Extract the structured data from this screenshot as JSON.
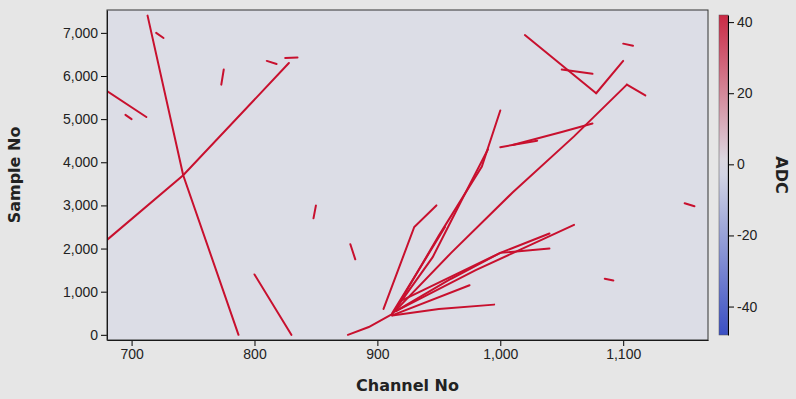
{
  "chart_data": {
    "type": "line",
    "color": "#c8102e",
    "x_label": "Channel No",
    "y_label": "Sample No",
    "xlim": [
      680,
      1169
    ],
    "ylim": [
      -120,
      7530
    ],
    "xticks": [
      700,
      800,
      900,
      {
        "value": 1000,
        "label": "1,000"
      },
      {
        "value": 1100,
        "label": "1,100"
      }
    ],
    "yticks": [
      0,
      {
        "value": 1000,
        "label": "1,000"
      },
      {
        "value": 2000,
        "label": "2,000"
      },
      {
        "value": 3000,
        "label": "3,000"
      },
      {
        "value": 4000,
        "label": "4,000"
      },
      {
        "value": 5000,
        "label": "5,000"
      },
      {
        "value": 6000,
        "label": "6,000"
      },
      {
        "value": 7000,
        "label": "7,000"
      }
    ],
    "zlabel": "ADC",
    "zlim": [
      -48,
      42
    ],
    "zticks": [
      -40,
      -20,
      0,
      20,
      40
    ],
    "series": [
      {
        "x": [
          713,
          742,
          787
        ],
        "values": [
          7400,
          3700,
          0
        ]
      },
      {
        "x": [
          680,
          742,
          828
        ],
        "values": [
          2200,
          3700,
          6300
        ]
      },
      {
        "x": [
          800,
          830
        ],
        "values": [
          1400,
          0
        ]
      },
      {
        "x": [
          680,
          712
        ],
        "values": [
          5650,
          5050
        ]
      },
      {
        "x": [
          1020,
          1078
        ],
        "values": [
          6950,
          5600
        ]
      },
      {
        "x": [
          1078,
          1100
        ],
        "values": [
          5600,
          6350
        ]
      },
      {
        "x": [
          1050,
          1075
        ],
        "values": [
          6150,
          6050
        ]
      },
      {
        "x": [
          876,
          893,
          912
        ],
        "values": [
          0,
          180,
          480
        ]
      },
      {
        "x": [
          912,
          960,
          1010,
          1060,
          1103
        ],
        "values": [
          480,
          1900,
          3300,
          4600,
          5800
        ]
      },
      {
        "x": [
          1103,
          1118
        ],
        "values": [
          5800,
          5550
        ]
      },
      {
        "x": [
          915,
          950,
          985,
          1000
        ],
        "values": [
          600,
          2300,
          3900,
          5200
        ]
      },
      {
        "x": [
          915,
          945,
          970,
          990
        ],
        "values": [
          600,
          1800,
          3200,
          4300
        ]
      },
      {
        "x": [
          915,
          960,
          1000,
          1040
        ],
        "values": [
          550,
          1300,
          1900,
          2350
        ]
      },
      {
        "x": [
          915,
          980,
          1060
        ],
        "values": [
          550,
          1500,
          2550
        ]
      },
      {
        "x": [
          912,
          950,
          995
        ],
        "values": [
          450,
          600,
          700
        ]
      },
      {
        "x": [
          912,
          975
        ],
        "values": [
          450,
          1150
        ]
      },
      {
        "x": [
          912,
          940,
          955
        ],
        "values": [
          500,
          1800,
          2500
        ]
      },
      {
        "x": [
          920,
          1000,
          1040
        ],
        "values": [
          800,
          1900,
          2000
        ]
      },
      {
        "x": [
          1010,
          1050,
          1075
        ],
        "values": [
          4400,
          4700,
          4900
        ]
      },
      {
        "x": [
          905,
          930,
          948
        ],
        "values": [
          600,
          2500,
          3000
        ]
      },
      {
        "x": [
          1000,
          1030
        ],
        "values": [
          4350,
          4500
        ]
      },
      {
        "x": [
          878,
          882
        ],
        "values": [
          2100,
          1750
        ]
      },
      {
        "x": [
          1150,
          1158
        ],
        "values": [
          3050,
          2980
        ]
      },
      {
        "x": [
          1085,
          1092
        ],
        "values": [
          1300,
          1260
        ]
      },
      {
        "x": [
          825,
          835
        ],
        "values": [
          6420,
          6430
        ]
      },
      {
        "x": [
          810,
          818
        ],
        "values": [
          6350,
          6280
        ]
      },
      {
        "x": [
          1100,
          1108
        ],
        "values": [
          6750,
          6700
        ]
      },
      {
        "x": [
          720,
          726
        ],
        "values": [
          7000,
          6880
        ]
      },
      {
        "x": [
          695,
          700
        ],
        "values": [
          5100,
          5000
        ]
      },
      {
        "x": [
          773,
          775
        ],
        "values": [
          5800,
          6150
        ]
      },
      {
        "x": [
          848,
          850
        ],
        "values": [
          2700,
          3000
        ]
      }
    ]
  }
}
